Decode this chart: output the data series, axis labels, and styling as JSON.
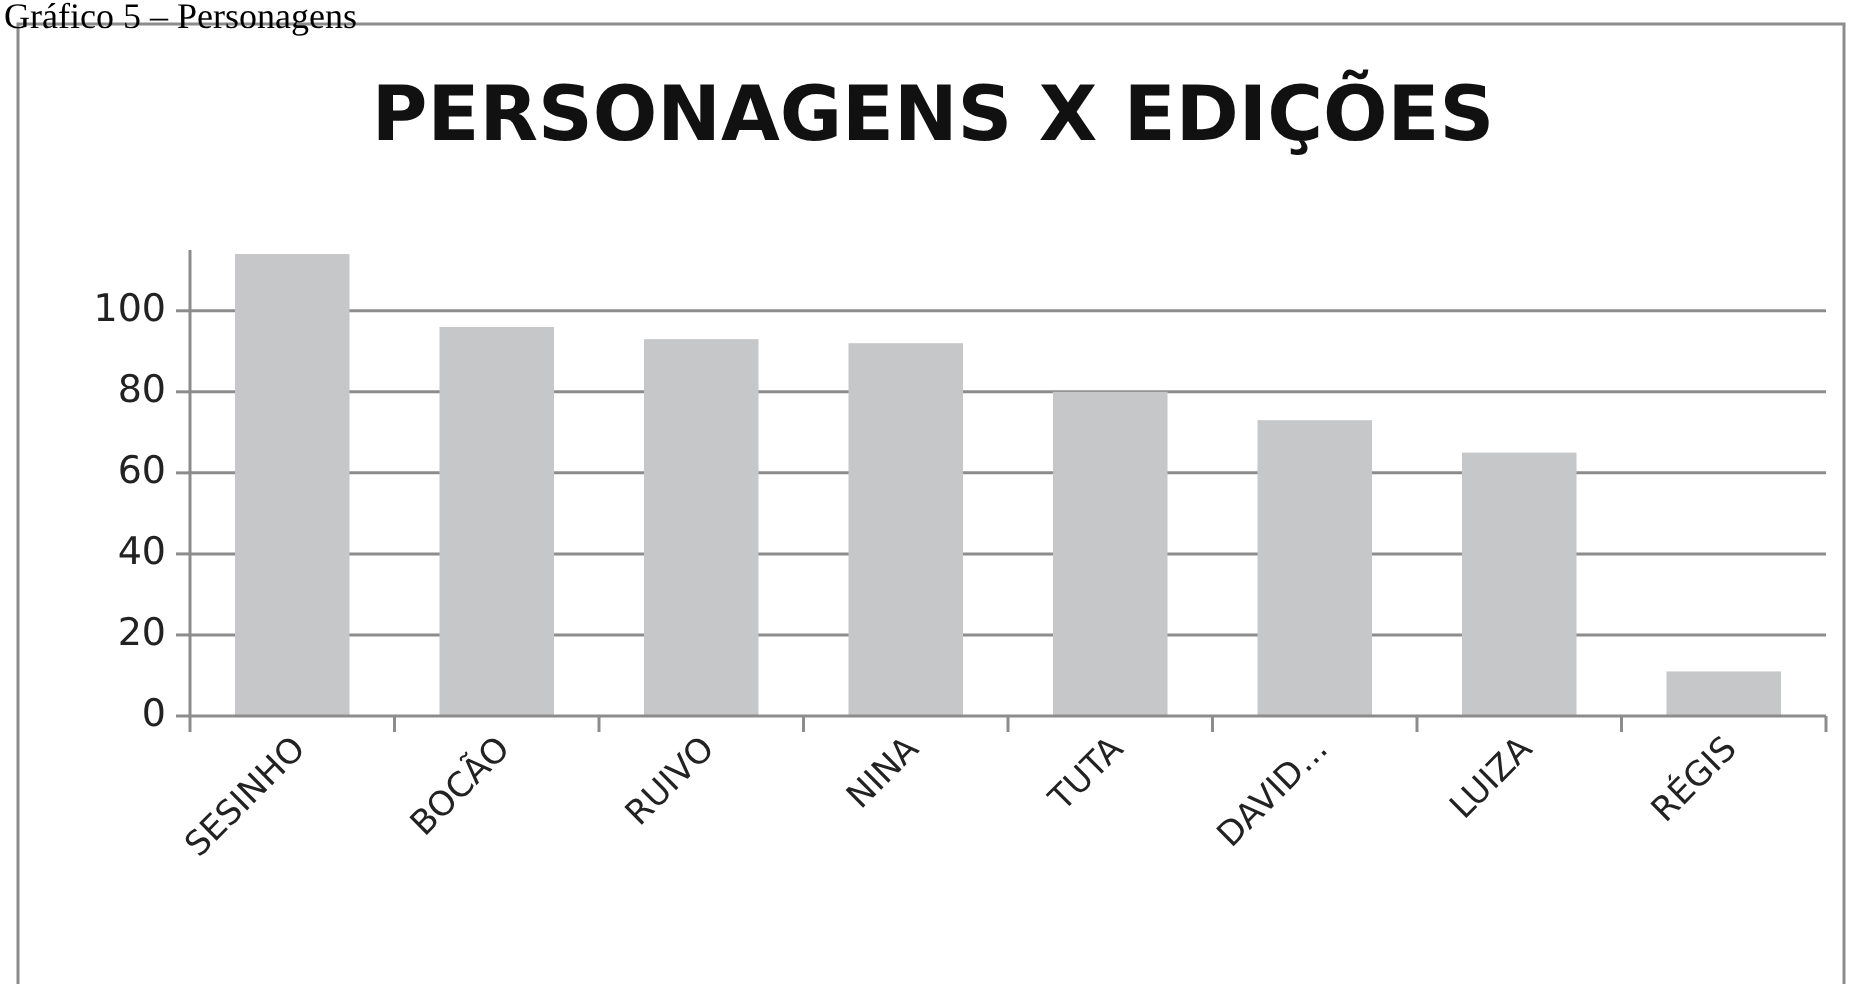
{
  "chart_data": {
    "type": "bar",
    "title": "PERSONAGENS X EDIÇÕES",
    "annotations": [
      "Gráfico 5 – Personagens"
    ],
    "categories": [
      "SESINHO",
      "BOCÃO",
      "RUIVO",
      "NINA",
      "TUTA",
      "DAVID...",
      "LUIZA",
      "RÉGIS"
    ],
    "values": [
      114,
      96,
      93,
      92,
      80,
      73,
      65,
      11
    ],
    "color": "#c6c7c9",
    "ylim": [
      0,
      115
    ],
    "yticks": [
      0,
      20,
      40,
      60,
      80,
      100
    ],
    "grid": "y"
  }
}
